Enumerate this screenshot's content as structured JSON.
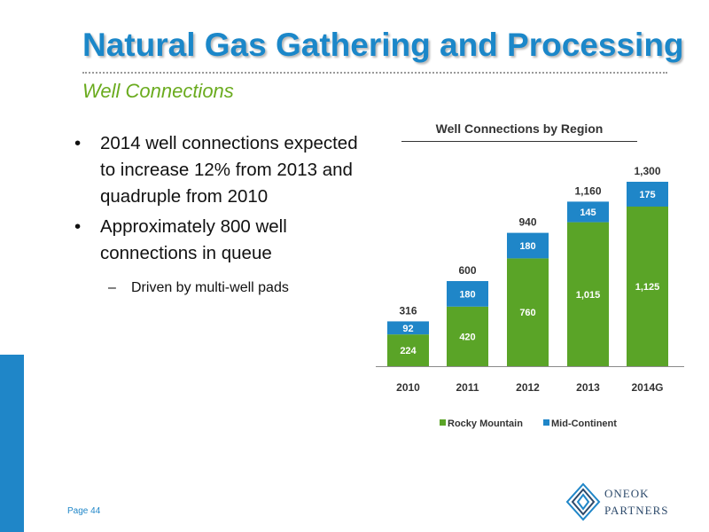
{
  "header": {
    "title": "Natural Gas Gathering and Processing",
    "subtitle": "Well Connections"
  },
  "bullets": [
    {
      "marker": "•",
      "text": "2014 well connections expected to increase 12% from 2013 and quadruple from 2010"
    },
    {
      "marker": "•",
      "text": "Approximately 800 well connections in queue"
    }
  ],
  "sub_bullet": {
    "marker": "–",
    "text": "Driven by multi-well pads"
  },
  "footer": {
    "page": "Page 44"
  },
  "logo": {
    "line1": "ONEOK",
    "line2": "PARTNERS"
  },
  "colors": {
    "accent": "#1f86c8",
    "title": "#1b87c9",
    "subtitle": "#6aab1e",
    "rocky": "#5aa427",
    "mid": "#1f86c8"
  },
  "chart_data": {
    "type": "bar",
    "stacked": true,
    "title": "Well Connections by Region",
    "categories": [
      "2010",
      "2011",
      "2012",
      "2013",
      "2014G"
    ],
    "series": [
      {
        "name": "Rocky Mountain",
        "color": "#5aa427",
        "values": [
          224,
          420,
          760,
          1015,
          1125
        ],
        "labels": [
          "224",
          "420",
          "760",
          "1,015",
          "1,125"
        ]
      },
      {
        "name": "Mid-Continent",
        "color": "#1f86c8",
        "values": [
          92,
          180,
          180,
          145,
          175
        ],
        "labels": [
          "92",
          "180",
          "180",
          "145",
          "175"
        ]
      }
    ],
    "totals": [
      316,
      600,
      940,
      1160,
      1300
    ],
    "total_labels": [
      "316",
      "600",
      "940",
      "1,160",
      "1,300"
    ],
    "ylim": [
      0,
      1300
    ],
    "legend_position": "bottom",
    "grid": false
  }
}
